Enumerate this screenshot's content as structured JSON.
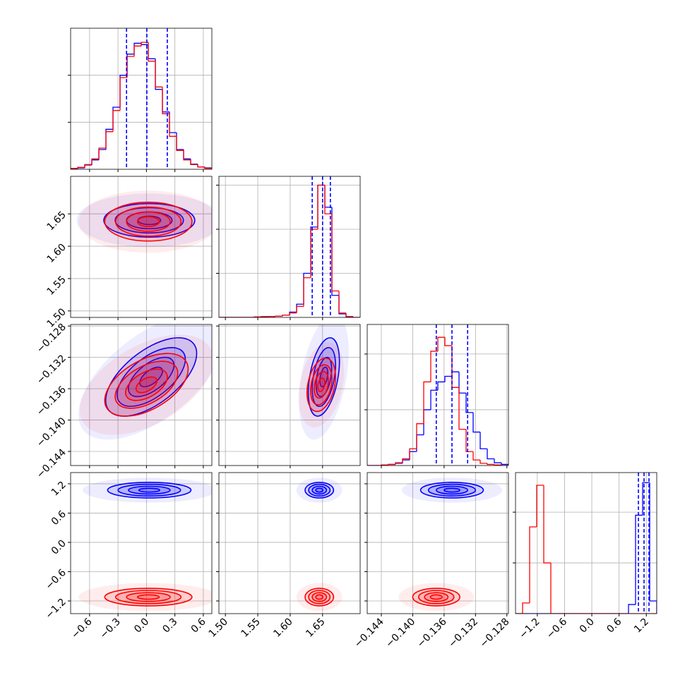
{
  "chart_data": {
    "type": "corner",
    "grid": true,
    "levels": [
      0.5,
      1,
      1.5,
      2
    ],
    "params": [
      {
        "ticks": [
          {
            "value": -0.6,
            "label": "−0.6"
          },
          {
            "value": -0.3,
            "label": "−0.3"
          },
          {
            "value": 0,
            "label": "0.0"
          },
          0.3,
          0.6
        ]
      },
      {
        "lim": [
          1.49,
          1.708
        ],
        "ticks": [
          {
            "value": 1.5,
            "label": "1.50"
          },
          1.55,
          {
            "value": 1.6,
            "label": "1.60"
          },
          1.65
        ]
      },
      {
        "lim": [
          -0.1458,
          -0.1278
        ],
        "ticks": [
          {
            "value": -0.144,
            "label": "−0.144"
          },
          {
            "value": -0.14,
            "label": "−0.140"
          },
          {
            "value": -0.136,
            "label": "−0.136"
          },
          {
            "value": -0.132,
            "label": "−0.132"
          },
          {
            "value": -0.128,
            "label": "−0.128"
          }
        ]
      },
      {
        "lim": [
          -1.46,
          1.43
        ],
        "ticks": [
          {
            "value": -1.2,
            "label": "−1.2"
          },
          {
            "value": -0.6,
            "label": "−0.6"
          },
          {
            "value": 0,
            "label": "0.0"
          },
          0.6,
          1.2
        ]
      }
    ],
    "diagonal": [
      {
        "bins": [
          -0.8,
          -0.7255,
          -0.651,
          -0.5765,
          -0.502,
          -0.4275,
          -0.353,
          -0.2785,
          -0.204,
          -0.1295,
          -0.055,
          0.0195,
          0.094,
          0.1685,
          0.243,
          0.3175,
          0.392,
          0.4665,
          0.541,
          0.6155,
          0.69
        ],
        "ylim": [
          0,
          300
        ],
        "yticks": [
          100,
          200
        ],
        "quantiles": [
          -0.21,
          0.004,
          0.22
        ],
        "series": [
          {
            "color": "#0000ff",
            "values": [
              1,
              3,
              9,
              20,
              42,
              85,
              132,
              200,
              245,
              268,
              265,
              235,
              170,
              122,
              78,
              42,
              22,
              11,
              5,
              3
            ]
          },
          {
            "color": "#ff0000",
            "values": [
              2,
              4,
              10,
              22,
              45,
              80,
              125,
              195,
              240,
              262,
              270,
              230,
              175,
              118,
              70,
              40,
              20,
              10,
              5,
              2
            ]
          }
        ]
      },
      {
        "bins": [
          1.49,
          1.5009,
          1.5118,
          1.5227,
          1.5336,
          1.5445,
          1.5554,
          1.5663,
          1.5772,
          1.5881,
          1.599,
          1.6099,
          1.6208,
          1.6317,
          1.6426,
          1.6535,
          1.6644,
          1.6753,
          1.6862,
          1.6971,
          1.708
        ],
        "ylim": [
          0,
          320
        ],
        "yticks": [
          100,
          200,
          300
        ],
        "quantiles": [
          1.634,
          1.65,
          1.662
        ],
        "series": [
          {
            "color": "#0000ff",
            "values": [
              0,
              0,
              0,
              0,
              0,
              1,
              1,
              2,
              3,
              5,
              12,
              30,
              100,
              205,
              300,
              250,
              50,
              8,
              1,
              0
            ]
          },
          {
            "color": "#ff0000",
            "values": [
              0,
              0,
              0,
              0,
              0,
              1,
              2,
              2,
              3,
              5,
              10,
              25,
              90,
              200,
              300,
              235,
              60,
              10,
              2,
              0
            ]
          }
        ]
      },
      {
        "bins": [
          -0.1458,
          -0.1449,
          -0.144,
          -0.1431,
          -0.1422,
          -0.1413,
          -0.1404,
          -0.1395,
          -0.1386,
          -0.1377,
          -0.1368,
          -0.1359,
          -0.135,
          -0.1341,
          -0.1332,
          -0.1323,
          -0.1314,
          -0.1305,
          -0.1296,
          -0.1287,
          -0.1278
        ],
        "ylim": [
          0,
          253
        ],
        "yticks": [
          100,
          200
        ],
        "quantiles": [
          -0.137,
          -0.135,
          -0.133
        ],
        "series": [
          {
            "color": "#0000ff",
            "values": [
              0,
              0,
              1,
              2,
              4,
              10,
              25,
              55,
              100,
              135,
              150,
              160,
              168,
              130,
              95,
              60,
              30,
              12,
              5,
              2
            ]
          },
          {
            "color": "#ff0000",
            "values": [
              0,
              0,
              1,
              2,
              5,
              12,
              30,
              75,
              150,
              205,
              230,
              215,
              140,
              65,
              25,
              10,
              4,
              2,
              1,
              0
            ]
          }
        ]
      },
      {
        "bins": [
          -1.68,
          -1.5245,
          -1.369,
          -1.2135,
          -1.058,
          -0.9025,
          -0.747,
          -0.5915,
          -0.436,
          -0.2805,
          -0.125,
          0.0305,
          0.186,
          0.3415,
          0.497,
          0.6525,
          0.808,
          0.9635,
          1.119,
          1.2745,
          1.43
        ],
        "ylim": [
          0,
          278
        ],
        "yticks": [
          100,
          200
        ],
        "quantiles": [
          1.026,
          1.15,
          1.259
        ],
        "series": [
          {
            "color": "#0000ff",
            "values": [
              0,
              0,
              0,
              0,
              0,
              0,
              0,
              0,
              0,
              0,
              0,
              0,
              0,
              0,
              0,
              0,
              18,
              194,
              258,
              25
            ]
          },
          {
            "color": "#ff0000",
            "values": [
              0,
              21,
              171,
              253,
              100,
              0,
              0,
              0,
              0,
              0,
              0,
              0,
              0,
              0,
              0,
              0,
              0,
              0,
              0,
              0
            ]
          }
        ]
      }
    ],
    "panels": [
      {
        "row": 1,
        "col": 0,
        "series": [
          {
            "color": "#0000ff",
            "center": [
              0.03,
              1.64
            ],
            "sd": [
              0.24,
              0.013
            ],
            "rho": 0
          },
          {
            "color": "#ff0000",
            "center": [
              0.02,
              1.638
            ],
            "sd": [
              0.23,
              0.015
            ],
            "rho": 0
          }
        ]
      },
      {
        "row": 2,
        "col": 0,
        "series": [
          {
            "color": "#0000ff",
            "center": [
              0.05,
              -0.1345
            ],
            "sd": [
              0.24,
              0.0025
            ],
            "rho": 0.6
          },
          {
            "color": "#ff0000",
            "center": [
              0,
              -0.1355
            ],
            "sd": [
              0.22,
              0.002
            ],
            "rho": 0.5
          }
        ]
      },
      {
        "row": 2,
        "col": 1,
        "series": [
          {
            "color": "#0000ff",
            "center": [
              1.652,
              -0.1345
            ],
            "sd": [
              0.012,
              0.0025
            ],
            "rho": 0.4
          },
          {
            "color": "#ff0000",
            "center": [
              1.648,
              -0.1355
            ],
            "sd": [
              0.011,
              0.0017
            ],
            "rho": 0.3
          }
        ]
      },
      {
        "row": 3,
        "col": 0,
        "series": [
          {
            "color": "#0000ff",
            "center": [
              0.03,
              1.07
            ],
            "sd": [
              0.22,
              0.08
            ],
            "rho": 0
          },
          {
            "color": "#ff0000",
            "center": [
              0.02,
              -1.12
            ],
            "sd": [
              0.23,
              0.09
            ],
            "rho": 0
          }
        ]
      },
      {
        "row": 3,
        "col": 1,
        "series": [
          {
            "color": "#0000ff",
            "center": [
              1.645,
              1.07
            ],
            "sd": [
              0.011,
              0.08
            ],
            "rho": 0
          },
          {
            "color": "#ff0000",
            "center": [
              1.645,
              -1.12
            ],
            "sd": [
              0.011,
              0.09
            ],
            "rho": 0
          }
        ]
      },
      {
        "row": 3,
        "col": 2,
        "series": [
          {
            "color": "#0000ff",
            "center": [
              -0.135,
              1.07
            ],
            "sd": [
              0.002,
              0.08
            ],
            "rho": 0
          },
          {
            "color": "#ff0000",
            "center": [
              -0.137,
              -1.12
            ],
            "sd": [
              0.0015,
              0.09
            ],
            "rho": 0
          }
        ]
      }
    ]
  }
}
